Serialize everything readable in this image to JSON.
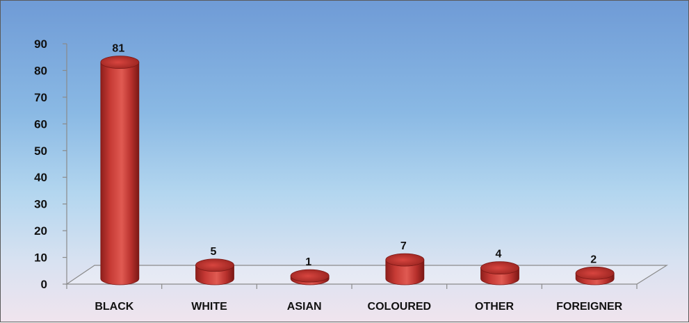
{
  "chart_data": {
    "type": "bar",
    "categories": [
      "BLACK",
      "WHITE",
      "ASIAN",
      "COLOURED",
      "OTHER",
      "FOREIGNER"
    ],
    "values": [
      81,
      5,
      1,
      7,
      4,
      2
    ],
    "ylim": [
      0,
      90
    ],
    "yticks": [
      0,
      10,
      20,
      30,
      40,
      50,
      60,
      70,
      80,
      90
    ],
    "grid": false,
    "legend": "none",
    "bar_color": "#c63a35",
    "style": "3d-cylinder"
  }
}
